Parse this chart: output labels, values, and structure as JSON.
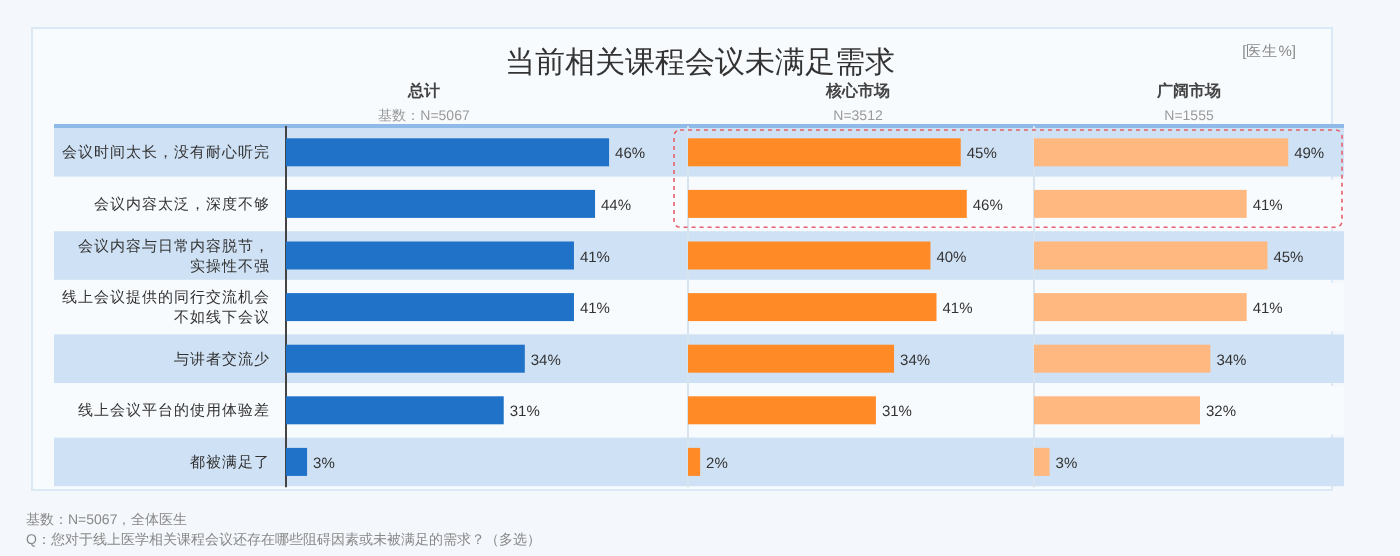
{
  "chart_data": [
    {
      "type": "bar",
      "orientation": "horizontal",
      "title": "当前相关课程会议未满足需求",
      "subtitle": "总计",
      "color": "#1f72c8",
      "categories": [
        "会议时间太长，没有耐心听完",
        "会议内容太泛，深度不够",
        "会议内容与日常内容脱节，实操性不强",
        "线上会议提供的同行交流机会不如线下会议",
        "与讲者交流少",
        "线上会议平台的使用体验差",
        "都被满足了"
      ],
      "values": [
        46,
        44,
        41,
        41,
        34,
        31,
        3
      ],
      "value_labels": [
        "46%",
        "44%",
        "41%",
        "41%",
        "34%",
        "31%",
        "3%"
      ],
      "annotations": [
        "基数：N=5067",
        "[医生%]",
        "基数：N=5067，全体医生",
        "Q：您对于线上医学相关课程会议还存在哪些阻碍因素或未被满足的需求？（多选）"
      ]
    },
    {
      "type": "bar",
      "orientation": "horizontal",
      "title": "核心市场",
      "subtitle": "N=3512",
      "color": "#ff8a26",
      "categories": [
        null,
        null,
        null,
        null,
        null,
        null,
        null
      ],
      "values": [
        45,
        46,
        40,
        41,
        34,
        31,
        2
      ],
      "value_labels": [
        "45%",
        "46%",
        "40%",
        "41%",
        "34%",
        "31%",
        "2%"
      ]
    },
    {
      "type": "bar",
      "orientation": "horizontal",
      "title": "广阔市场",
      "subtitle": "N=1555",
      "color": "#ffb880",
      "categories": [
        null,
        null,
        null,
        null,
        null,
        null,
        null
      ],
      "values": [
        49,
        41,
        45,
        41,
        34,
        32,
        3
      ],
      "value_labels": [
        "49%",
        "41%",
        "45%",
        "41%",
        "34%",
        "32%",
        "3%"
      ]
    }
  ]
}
